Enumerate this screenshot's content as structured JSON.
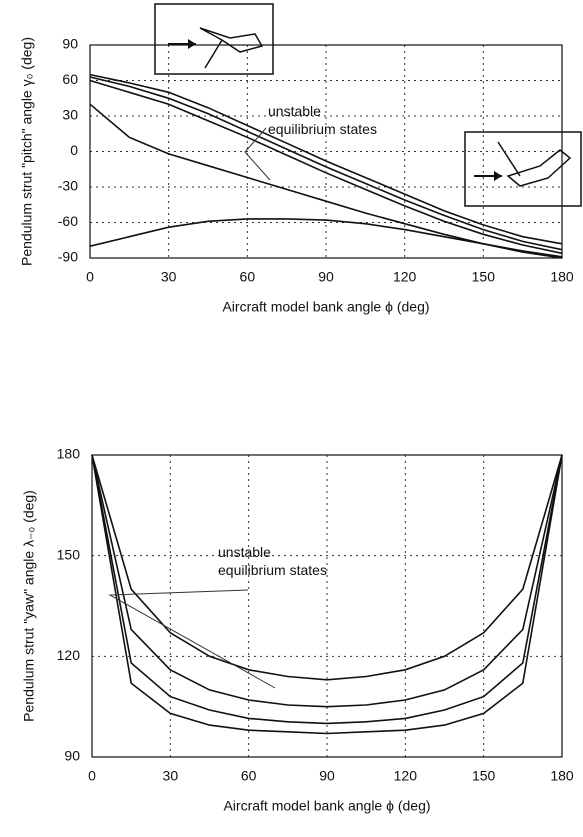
{
  "chart_data": [
    {
      "type": "line",
      "y_label": "Pendulum strut \"pitch\" angle  γ₀  (deg)",
      "x_label": "Aircraft model bank angle  ϕ  (deg)",
      "annotation": "unstable\nequilibrium states",
      "x": [
        0,
        15,
        30,
        45,
        60,
        75,
        90,
        105,
        120,
        135,
        150,
        165,
        180
      ],
      "series": [
        {
          "color": "#111111",
          "values": [
            65,
            58,
            50,
            37,
            22,
            7,
            -8,
            -22,
            -36,
            -50,
            -62,
            -72,
            -78
          ]
        },
        {
          "color": "#111111",
          "values": [
            63,
            55,
            45,
            32,
            17,
            2,
            -13,
            -27,
            -41,
            -54,
            -66,
            -76,
            -83
          ]
        },
        {
          "color": "#111111",
          "values": [
            60,
            50,
            40,
            26,
            12,
            -3,
            -18,
            -32,
            -46,
            -59,
            -70,
            -79,
            -86
          ]
        },
        {
          "color": "#111111",
          "values": [
            40,
            12,
            -2,
            -12,
            -22,
            -32,
            -42,
            -52,
            -61,
            -70,
            -78,
            -85,
            -90
          ]
        },
        {
          "color": "#111111",
          "values": [
            -80,
            -72,
            -64,
            -59,
            -57,
            -57,
            -58,
            -61,
            -66,
            -72,
            -78,
            -84,
            -89
          ]
        }
      ],
      "xlim": [
        0,
        180
      ],
      "xticks": [
        0,
        30,
        60,
        90,
        120,
        150,
        180
      ],
      "ylim": [
        -90,
        90
      ],
      "yticks": [
        -90,
        -60,
        -30,
        0,
        30,
        60,
        90
      ],
      "grid": true
    },
    {
      "type": "line",
      "y_label": "Pendulum strut \"yaw\" angle λ₋₀ (deg)",
      "x_label": "Aircraft model bank angle  ϕ  (deg)",
      "annotation": "unstable\nequilibrium states",
      "x": [
        0,
        15,
        30,
        45,
        60,
        75,
        90,
        105,
        120,
        135,
        150,
        165,
        180
      ],
      "series": [
        {
          "color": "#111111",
          "values": [
            180,
            140,
            127,
            120,
            116,
            114,
            113,
            114,
            116,
            120,
            127,
            140,
            180
          ]
        },
        {
          "color": "#111111",
          "values": [
            180,
            128,
            116,
            110,
            107,
            105.5,
            105,
            105.5,
            107,
            110,
            116,
            128,
            180
          ]
        },
        {
          "color": "#111111",
          "values": [
            180,
            118,
            108,
            104,
            101.5,
            100.5,
            100,
            100.5,
            101.5,
            104,
            108,
            118,
            180
          ]
        },
        {
          "color": "#111111",
          "values": [
            180,
            112,
            103,
            99.5,
            98,
            97.5,
            97,
            97.5,
            98,
            99.5,
            103,
            112,
            180
          ]
        }
      ],
      "xlim": [
        0,
        180
      ],
      "xticks": [
        0,
        30,
        60,
        90,
        120,
        150,
        180
      ],
      "ylim": [
        90,
        180
      ],
      "yticks": [
        90,
        120,
        150,
        180
      ],
      "grid": true
    }
  ]
}
